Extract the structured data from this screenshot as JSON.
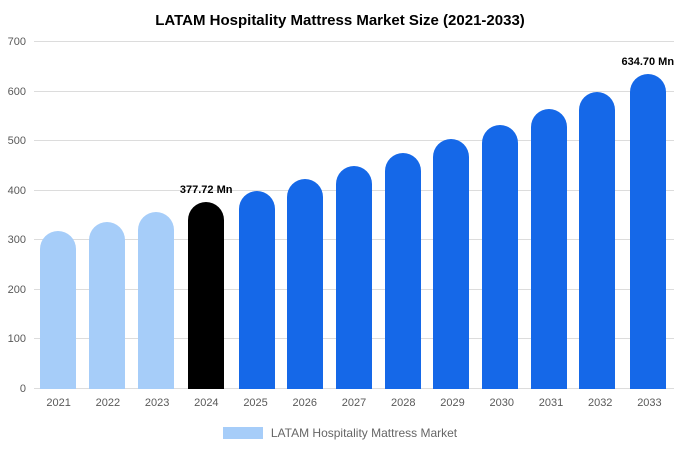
{
  "chart_data": {
    "type": "bar",
    "title": "LATAM Hospitality Mattress Market Size (2021-2033)",
    "categories": [
      "2021",
      "2022",
      "2023",
      "2024",
      "2025",
      "2026",
      "2027",
      "2028",
      "2029",
      "2030",
      "2031",
      "2032",
      "2033"
    ],
    "values": [
      317.8,
      336.6,
      356.6,
      377.72,
      400.1,
      423.8,
      448.9,
      475.5,
      503.7,
      533.5,
      565.1,
      598.6,
      634.7
    ],
    "bar_colors": [
      "#A6CDF9",
      "#A6CDF9",
      "#A6CDF9",
      "#000000",
      "#1568E8",
      "#1568E8",
      "#1568E8",
      "#1568E8",
      "#1568E8",
      "#1568E8",
      "#1568E8",
      "#1568E8",
      "#1568E8"
    ],
    "bar_labels": {
      "3": "377.72 Mn",
      "12": "634.70 Mn"
    },
    "ylim": [
      0,
      700
    ],
    "ytick_step": 100,
    "grid": true,
    "legend": [
      "LATAM Hospitality Mattress Market"
    ],
    "legend_position": "bottom",
    "legend_swatch_color": "#A6CDF9",
    "xlabel": "",
    "ylabel": ""
  }
}
